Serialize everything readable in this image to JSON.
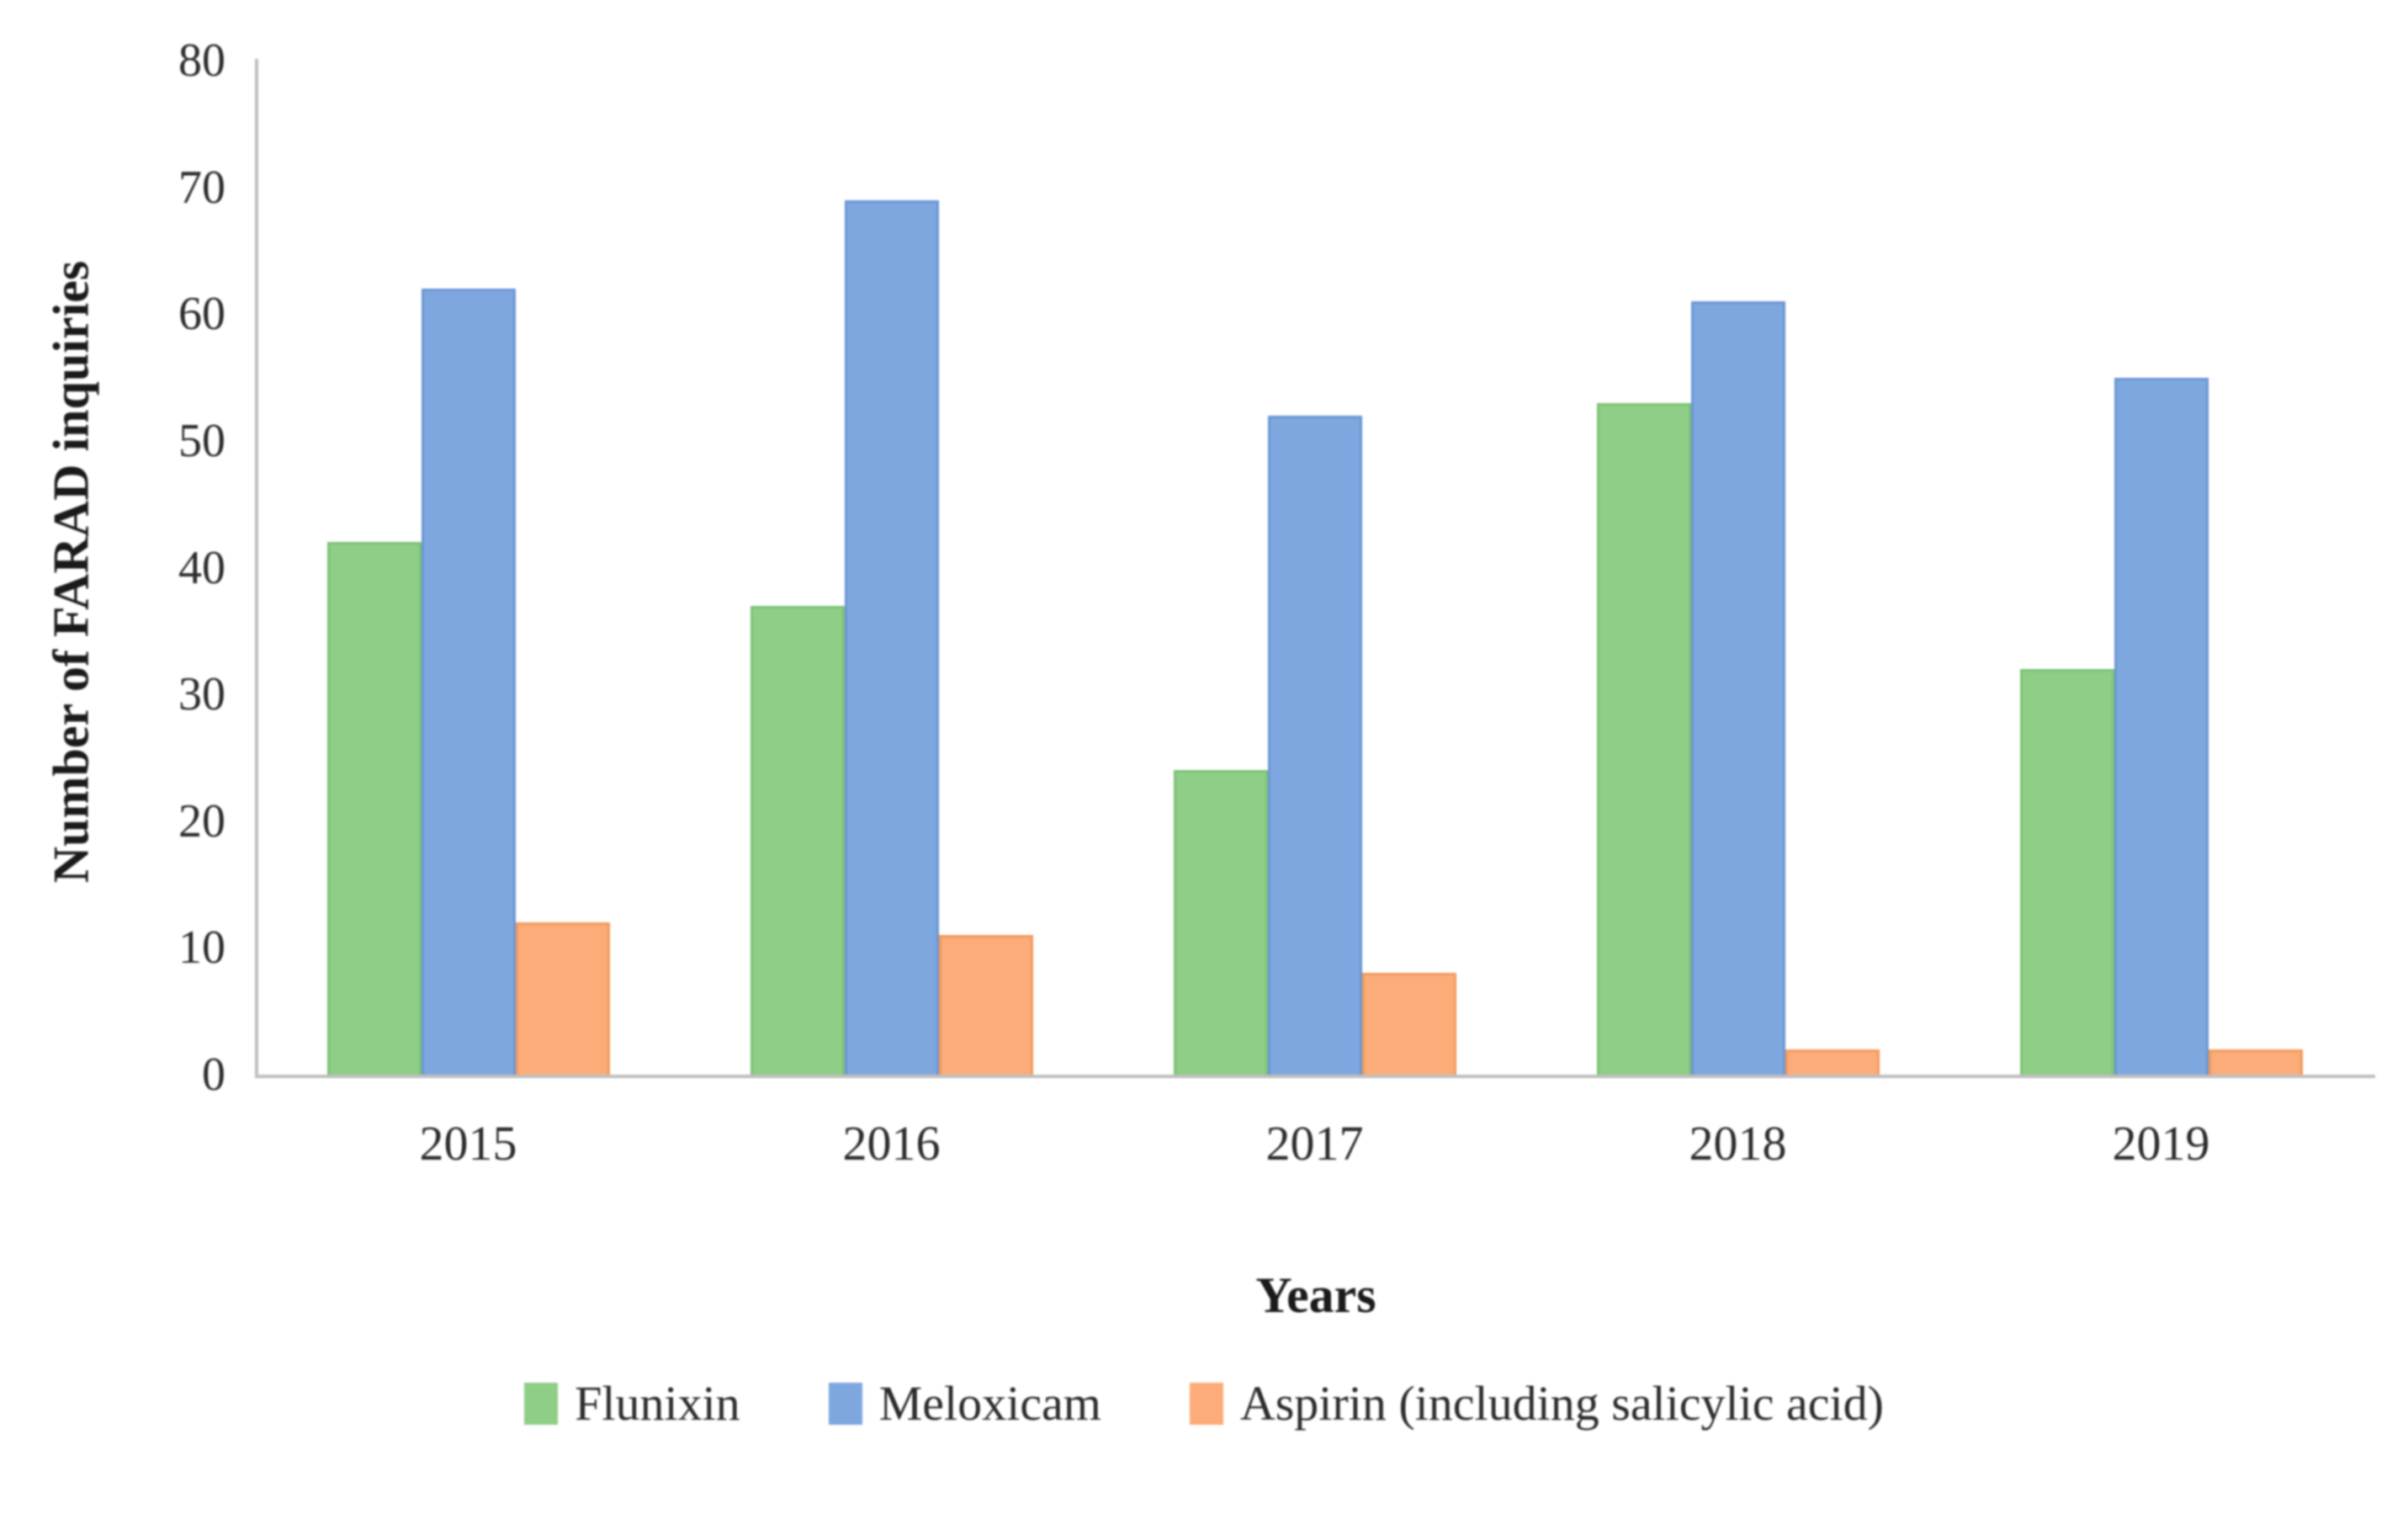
{
  "chart_data": {
    "type": "bar",
    "title": "",
    "categories": [
      "2015",
      "2016",
      "2017",
      "2018",
      "2019"
    ],
    "series": [
      {
        "name": "Flunixin",
        "values": [
          42,
          37,
          24,
          53,
          32
        ],
        "fill": "#8FCE87",
        "edge": "#7CC276"
      },
      {
        "name": "Meloxicam",
        "values": [
          62,
          69,
          52,
          61,
          55
        ],
        "fill": "#7FA7DF",
        "edge": "#6A96D4"
      },
      {
        "name": "Aspirin (including salicylic acid)",
        "values": [
          12,
          11,
          8,
          2,
          2
        ],
        "fill": "#FBAC79",
        "edge": "#F29A5C"
      }
    ],
    "xlabel": "Years",
    "ylabel": "Number of FARAD inquiries",
    "ylim": [
      0,
      80
    ],
    "yticks": [
      0,
      10,
      20,
      30,
      40,
      50,
      60,
      70,
      80
    ],
    "grid": false,
    "legend_position": "bottom",
    "axis_color": "#BFBFBF"
  }
}
